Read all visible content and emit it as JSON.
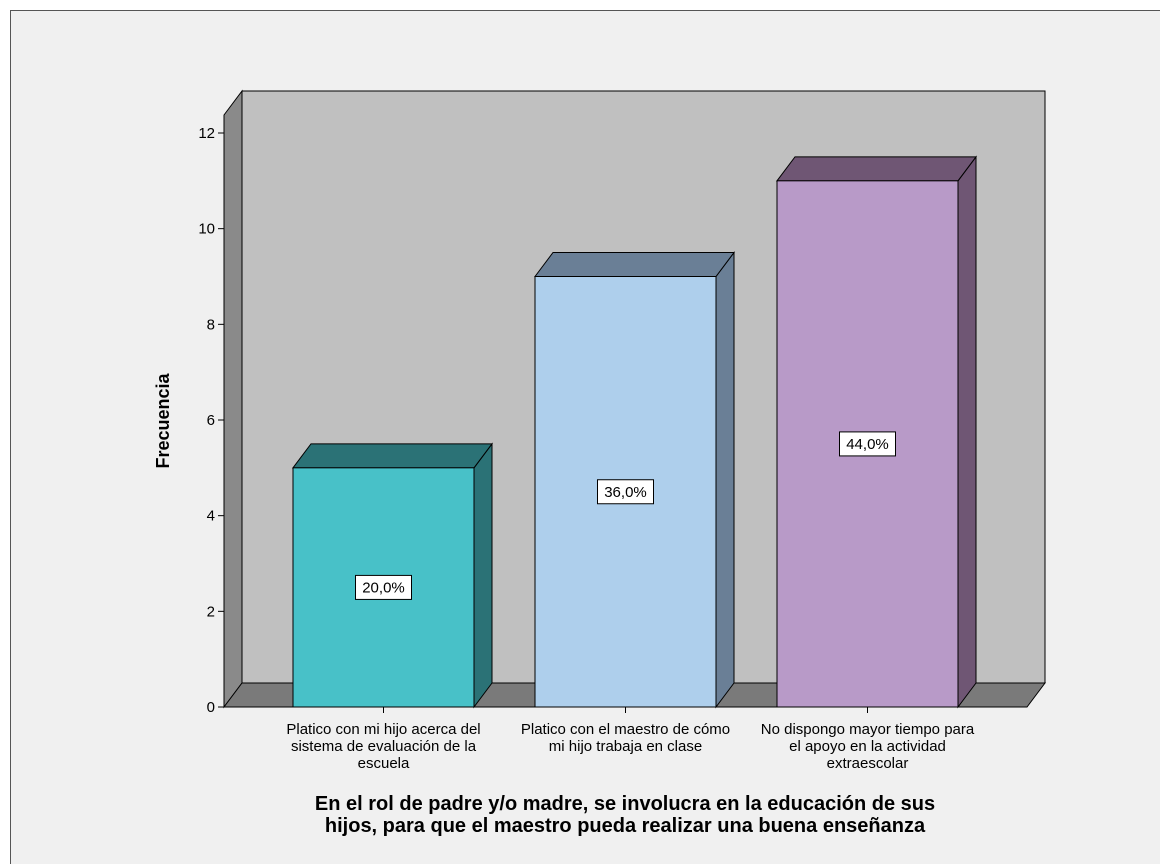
{
  "chart_data": {
    "type": "bar",
    "categories": [
      [
        "Platico con mi hijo acerca del",
        "sistema de evaluación de la",
        "escuela"
      ],
      [
        "Platico con el maestro de cómo",
        "mi hijo trabaja en clase"
      ],
      [
        "No dispongo mayor tiempo para",
        "el apoyo en la actividad",
        "extraescolar"
      ]
    ],
    "values": [
      5,
      9,
      11
    ],
    "data_labels": [
      "20,0%",
      "36,0%",
      "44,0%"
    ],
    "ylabel": "Frecuencia",
    "xlabel": [
      "En el rol de padre y/o madre, se involucra en la educación de sus",
      "hijos, para que el maestro pueda realizar una buena enseñanza"
    ],
    "ylim": [
      0,
      12
    ],
    "yticks": [
      "0",
      "2",
      "4",
      "6",
      "8",
      "10",
      "12"
    ],
    "style": "3d",
    "grid": false,
    "colors": {
      "bars": [
        "#48c1c8",
        "#aecfec",
        "#b89ac8"
      ],
      "bar_tops": [
        "#2b7276",
        "#6a7f96",
        "#6f5674"
      ],
      "bar_sides": [
        "#2b7276",
        "#6a7f96",
        "#6f5674"
      ],
      "plot_back": "#c0c0c0",
      "plot_side": "#8a8a8a",
      "plot_floor": "#7a7a7a",
      "background": "#f0f0f0"
    }
  }
}
